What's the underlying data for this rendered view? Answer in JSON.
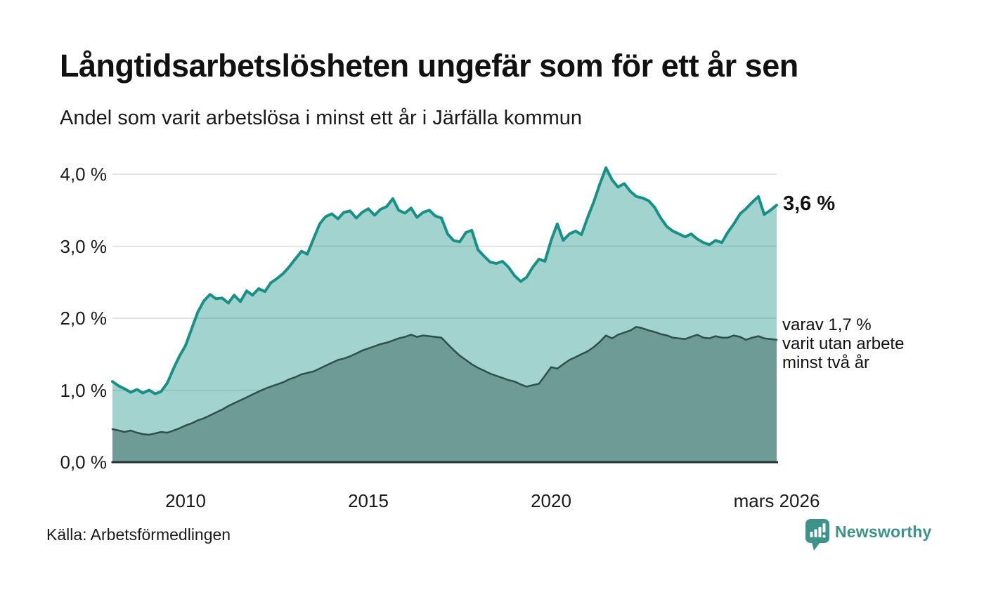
{
  "header": {
    "title": "Långtidsarbetslösheten ungefär som för ett år sen",
    "subtitle": "Andel som varit arbetslösa i minst ett år i Järfälla kommun"
  },
  "annotations": {
    "series1_end_label": "3,6 %",
    "series2_note_line1": "varav 1,7 %",
    "series2_note_line2": "varit utan arbete",
    "series2_note_line3": "minst två år"
  },
  "footer": {
    "source": "Källa: Arbetsförmedlingen",
    "brand_name": "Newsworthy",
    "brand_icon": "bar-chart-speech-bubble-icon"
  },
  "colors": {
    "series1_line": "#179187",
    "series1_fill": "rgba(23,145,135,0.40)",
    "series2_line": "#2e4f4c",
    "series2_fill": "#6f9b96",
    "gridline": "#d9d9d9",
    "axis_line": "#26302f",
    "text": "#111111",
    "brand": "#3d938a"
  },
  "chart_data": {
    "type": "area",
    "title": "Långtidsarbetslösheten ungefär som för ett år sen",
    "subtitle": "Andel som varit arbetslösa i minst ett år i Järfälla kommun",
    "unit": "percent",
    "grid": "horizontal",
    "legend": "inline-annotations",
    "x_range": [
      2008.0,
      2026.17
    ],
    "ylim": [
      0,
      4.2
    ],
    "yticks": [
      {
        "label": "4,0 %",
        "value": 4.0
      },
      {
        "label": "3,0 %",
        "value": 3.0
      },
      {
        "label": "2,0 %",
        "value": 2.0
      },
      {
        "label": "1,0 %",
        "value": 1.0
      },
      {
        "label": "0,0 %",
        "value": 0.0
      }
    ],
    "xticks": [
      {
        "label": "2010",
        "value": 2010
      },
      {
        "label": "2015",
        "value": 2015
      },
      {
        "label": "2020",
        "value": 2020
      },
      {
        "label": "mars 2026",
        "value": 2026.17
      }
    ],
    "series": [
      {
        "name": "Andel arbetslösa minst ett år",
        "last_value_label": "3,6 %",
        "last_value": 3.6,
        "x": [
          2008.0,
          2008.17,
          2008.33,
          2008.5,
          2008.67,
          2008.83,
          2009.0,
          2009.17,
          2009.33,
          2009.5,
          2009.67,
          2009.83,
          2010.0,
          2010.17,
          2010.33,
          2010.5,
          2010.67,
          2010.83,
          2011.0,
          2011.17,
          2011.33,
          2011.5,
          2011.67,
          2011.83,
          2012.0,
          2012.17,
          2012.33,
          2012.5,
          2012.67,
          2012.83,
          2013.0,
          2013.17,
          2013.33,
          2013.5,
          2013.67,
          2013.83,
          2014.0,
          2014.17,
          2014.33,
          2014.5,
          2014.67,
          2014.83,
          2015.0,
          2015.17,
          2015.33,
          2015.5,
          2015.67,
          2015.83,
          2016.0,
          2016.17,
          2016.33,
          2016.5,
          2016.67,
          2016.83,
          2017.0,
          2017.17,
          2017.33,
          2017.5,
          2017.67,
          2017.83,
          2018.0,
          2018.17,
          2018.33,
          2018.5,
          2018.67,
          2018.83,
          2019.0,
          2019.17,
          2019.33,
          2019.5,
          2019.67,
          2019.83,
          2020.0,
          2020.17,
          2020.33,
          2020.5,
          2020.67,
          2020.83,
          2021.0,
          2021.17,
          2021.33,
          2021.5,
          2021.67,
          2021.83,
          2022.0,
          2022.17,
          2022.33,
          2022.5,
          2022.67,
          2022.83,
          2023.0,
          2023.17,
          2023.33,
          2023.5,
          2023.67,
          2023.83,
          2024.0,
          2024.17,
          2024.33,
          2024.5,
          2024.67,
          2024.83,
          2025.0,
          2025.17,
          2025.33,
          2025.5,
          2025.67,
          2025.83,
          2026.0,
          2026.17
        ],
        "y": [
          1.12,
          1.06,
          1.02,
          0.97,
          1.01,
          0.96,
          1.0,
          0.95,
          0.98,
          1.1,
          1.3,
          1.47,
          1.62,
          1.86,
          2.08,
          2.24,
          2.33,
          2.27,
          2.28,
          2.21,
          2.32,
          2.23,
          2.38,
          2.32,
          2.41,
          2.37,
          2.49,
          2.55,
          2.62,
          2.71,
          2.82,
          2.93,
          2.89,
          3.1,
          3.31,
          3.41,
          3.45,
          3.38,
          3.47,
          3.49,
          3.39,
          3.47,
          3.52,
          3.43,
          3.51,
          3.55,
          3.66,
          3.5,
          3.46,
          3.53,
          3.4,
          3.47,
          3.5,
          3.42,
          3.39,
          3.17,
          3.08,
          3.06,
          3.19,
          3.22,
          2.95,
          2.86,
          2.78,
          2.76,
          2.79,
          2.71,
          2.59,
          2.51,
          2.57,
          2.71,
          2.82,
          2.79,
          3.08,
          3.31,
          3.08,
          3.17,
          3.21,
          3.16,
          3.4,
          3.62,
          3.86,
          4.09,
          3.92,
          3.82,
          3.87,
          3.76,
          3.69,
          3.67,
          3.63,
          3.54,
          3.39,
          3.27,
          3.21,
          3.17,
          3.13,
          3.17,
          3.1,
          3.05,
          3.02,
          3.08,
          3.05,
          3.19,
          3.31,
          3.45,
          3.52,
          3.61,
          3.69,
          3.44,
          3.5,
          3.57
        ]
      },
      {
        "name": "Varav utan arbete minst två år",
        "last_value_label": "1,7 %",
        "last_value": 1.7,
        "x": [
          2008.0,
          2008.17,
          2008.33,
          2008.5,
          2008.67,
          2008.83,
          2009.0,
          2009.17,
          2009.33,
          2009.5,
          2009.67,
          2009.83,
          2010.0,
          2010.17,
          2010.33,
          2010.5,
          2010.67,
          2010.83,
          2011.0,
          2011.17,
          2011.33,
          2011.5,
          2011.67,
          2011.83,
          2012.0,
          2012.17,
          2012.33,
          2012.5,
          2012.67,
          2012.83,
          2013.0,
          2013.17,
          2013.33,
          2013.5,
          2013.67,
          2013.83,
          2014.0,
          2014.17,
          2014.33,
          2014.5,
          2014.67,
          2014.83,
          2015.0,
          2015.17,
          2015.33,
          2015.5,
          2015.67,
          2015.83,
          2016.0,
          2016.17,
          2016.33,
          2016.5,
          2016.67,
          2016.83,
          2017.0,
          2017.17,
          2017.33,
          2017.5,
          2017.67,
          2017.83,
          2018.0,
          2018.17,
          2018.33,
          2018.5,
          2018.67,
          2018.83,
          2019.0,
          2019.17,
          2019.33,
          2019.5,
          2019.67,
          2019.83,
          2020.0,
          2020.17,
          2020.33,
          2020.5,
          2020.67,
          2020.83,
          2021.0,
          2021.17,
          2021.33,
          2021.5,
          2021.67,
          2021.83,
          2022.0,
          2022.17,
          2022.33,
          2022.5,
          2022.67,
          2022.83,
          2023.0,
          2023.17,
          2023.33,
          2023.5,
          2023.67,
          2023.83,
          2024.0,
          2024.17,
          2024.33,
          2024.5,
          2024.67,
          2024.83,
          2025.0,
          2025.17,
          2025.33,
          2025.5,
          2025.67,
          2025.83,
          2026.0,
          2026.17
        ],
        "y": [
          0.46,
          0.44,
          0.42,
          0.44,
          0.41,
          0.39,
          0.38,
          0.4,
          0.42,
          0.41,
          0.44,
          0.47,
          0.51,
          0.54,
          0.58,
          0.61,
          0.65,
          0.69,
          0.73,
          0.78,
          0.82,
          0.86,
          0.9,
          0.94,
          0.98,
          1.02,
          1.05,
          1.08,
          1.11,
          1.15,
          1.18,
          1.22,
          1.24,
          1.26,
          1.3,
          1.34,
          1.38,
          1.42,
          1.44,
          1.47,
          1.51,
          1.55,
          1.58,
          1.61,
          1.64,
          1.66,
          1.69,
          1.72,
          1.74,
          1.77,
          1.74,
          1.76,
          1.75,
          1.74,
          1.73,
          1.64,
          1.56,
          1.48,
          1.42,
          1.36,
          1.31,
          1.27,
          1.23,
          1.2,
          1.17,
          1.14,
          1.12,
          1.08,
          1.05,
          1.07,
          1.09,
          1.2,
          1.32,
          1.3,
          1.36,
          1.42,
          1.46,
          1.5,
          1.54,
          1.6,
          1.67,
          1.76,
          1.72,
          1.77,
          1.8,
          1.83,
          1.88,
          1.86,
          1.83,
          1.81,
          1.78,
          1.76,
          1.73,
          1.72,
          1.71,
          1.74,
          1.77,
          1.73,
          1.72,
          1.75,
          1.73,
          1.73,
          1.76,
          1.74,
          1.7,
          1.73,
          1.75,
          1.72,
          1.71,
          1.7
        ]
      }
    ]
  }
}
